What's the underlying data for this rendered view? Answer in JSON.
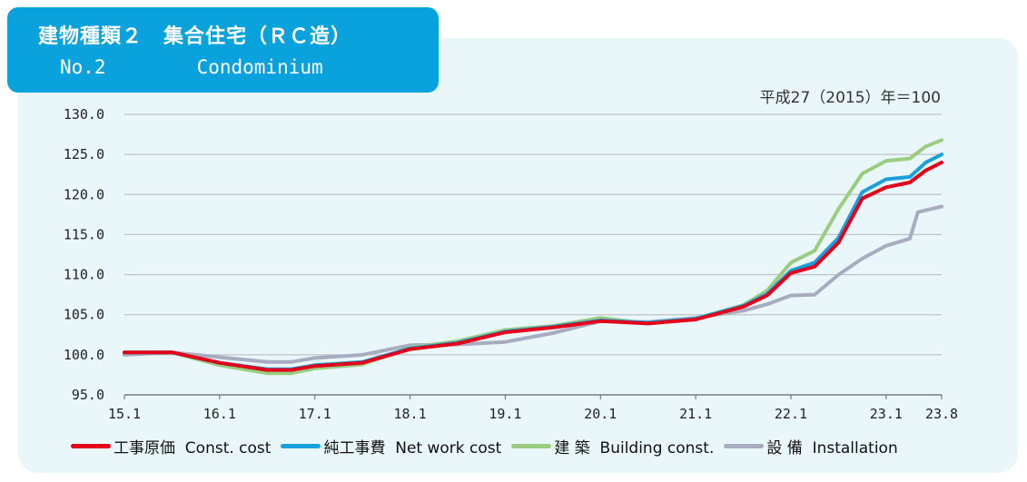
{
  "header": {
    "title_line1": "建物種類２　集合住宅（ＲＣ造）",
    "title_line2_no": "No.2",
    "title_line2_name": "Condominium"
  },
  "base_note": "平成27（2015）年＝100",
  "colors": {
    "panel": "#e9f6fa",
    "title_box": "#0aa2dc",
    "const_cost": "#e3001b",
    "net_work_cost": "#1aa0dc",
    "building": "#9acd7f",
    "installation": "#a8acc0"
  },
  "chart_data": {
    "type": "line",
    "title": "",
    "xlabel": "",
    "ylabel": "",
    "ylim": [
      95,
      130
    ],
    "yticks": [
      "130.0",
      "125.0",
      "120.0",
      "115.0",
      "110.0",
      "105.0",
      "100.0",
      "95.0"
    ],
    "ytick_values": [
      130,
      125,
      120,
      115,
      110,
      105,
      100,
      95
    ],
    "x_range_months": [
      0,
      103
    ],
    "xticks": [
      {
        "label": "15.1",
        "month": 0
      },
      {
        "label": "16.1",
        "month": 12
      },
      {
        "label": "17.1",
        "month": 24
      },
      {
        "label": "18.1",
        "month": 36
      },
      {
        "label": "19.1",
        "month": 48
      },
      {
        "label": "20.1",
        "month": 60
      },
      {
        "label": "21.1",
        "month": 72
      },
      {
        "label": "22.1",
        "month": 84
      },
      {
        "label": "23.1",
        "month": 96
      },
      {
        "label": "23.8",
        "month": 103
      }
    ],
    "grid": true,
    "legend_position": "bottom",
    "series": [
      {
        "name": "工事原価  Const. cost",
        "color": "#e3001b",
        "points": [
          [
            0,
            100.3
          ],
          [
            6,
            100.3
          ],
          [
            12,
            99.0
          ],
          [
            18,
            98.1
          ],
          [
            21,
            98.1
          ],
          [
            24,
            98.6
          ],
          [
            30,
            99.0
          ],
          [
            36,
            100.7
          ],
          [
            42,
            101.4
          ],
          [
            48,
            102.8
          ],
          [
            54,
            103.4
          ],
          [
            60,
            104.2
          ],
          [
            66,
            103.9
          ],
          [
            72,
            104.4
          ],
          [
            78,
            106.0
          ],
          [
            81,
            107.4
          ],
          [
            84,
            110.2
          ],
          [
            87,
            111.0
          ],
          [
            90,
            114.0
          ],
          [
            93,
            119.5
          ],
          [
            96,
            120.9
          ],
          [
            99,
            121.5
          ],
          [
            101,
            123.0
          ],
          [
            103,
            124.0
          ]
        ]
      },
      {
        "name": "純工事費  Net work cost",
        "color": "#1aa0dc",
        "points": [
          [
            0,
            100.3
          ],
          [
            6,
            100.3
          ],
          [
            12,
            99.0
          ],
          [
            18,
            98.2
          ],
          [
            21,
            98.2
          ],
          [
            24,
            98.7
          ],
          [
            30,
            99.1
          ],
          [
            36,
            100.8
          ],
          [
            42,
            101.5
          ],
          [
            48,
            102.9
          ],
          [
            54,
            103.5
          ],
          [
            60,
            104.3
          ],
          [
            66,
            104.0
          ],
          [
            72,
            104.5
          ],
          [
            78,
            106.1
          ],
          [
            81,
            107.6
          ],
          [
            84,
            110.5
          ],
          [
            87,
            111.5
          ],
          [
            90,
            114.6
          ],
          [
            93,
            120.3
          ],
          [
            96,
            121.9
          ],
          [
            99,
            122.2
          ],
          [
            101,
            124.0
          ],
          [
            103,
            125.0
          ]
        ]
      },
      {
        "name": "建 築  Building const.",
        "color": "#9acd7f",
        "points": [
          [
            0,
            100.3
          ],
          [
            6,
            100.3
          ],
          [
            12,
            98.7
          ],
          [
            18,
            97.7
          ],
          [
            21,
            97.7
          ],
          [
            24,
            98.3
          ],
          [
            30,
            98.8
          ],
          [
            36,
            100.9
          ],
          [
            42,
            101.7
          ],
          [
            48,
            103.1
          ],
          [
            54,
            103.6
          ],
          [
            60,
            104.6
          ],
          [
            66,
            103.9
          ],
          [
            72,
            104.5
          ],
          [
            78,
            106.2
          ],
          [
            81,
            108.0
          ],
          [
            84,
            111.5
          ],
          [
            87,
            113.0
          ],
          [
            90,
            118.2
          ],
          [
            93,
            122.6
          ],
          [
            96,
            124.2
          ],
          [
            99,
            124.5
          ],
          [
            101,
            126.0
          ],
          [
            103,
            126.8
          ]
        ]
      },
      {
        "name": "設 備  Installation",
        "color": "#a8acc0",
        "points": [
          [
            0,
            100.0
          ],
          [
            6,
            100.3
          ],
          [
            12,
            99.7
          ],
          [
            18,
            99.1
          ],
          [
            21,
            99.1
          ],
          [
            24,
            99.6
          ],
          [
            30,
            100.0
          ],
          [
            36,
            101.2
          ],
          [
            42,
            101.3
          ],
          [
            48,
            101.6
          ],
          [
            54,
            102.7
          ],
          [
            60,
            104.2
          ],
          [
            66,
            104.1
          ],
          [
            72,
            104.6
          ],
          [
            78,
            105.5
          ],
          [
            81,
            106.3
          ],
          [
            84,
            107.4
          ],
          [
            87,
            107.5
          ],
          [
            90,
            110.0
          ],
          [
            93,
            112.0
          ],
          [
            96,
            113.6
          ],
          [
            99,
            114.5
          ],
          [
            100,
            117.8
          ],
          [
            103,
            118.5
          ]
        ]
      }
    ]
  }
}
